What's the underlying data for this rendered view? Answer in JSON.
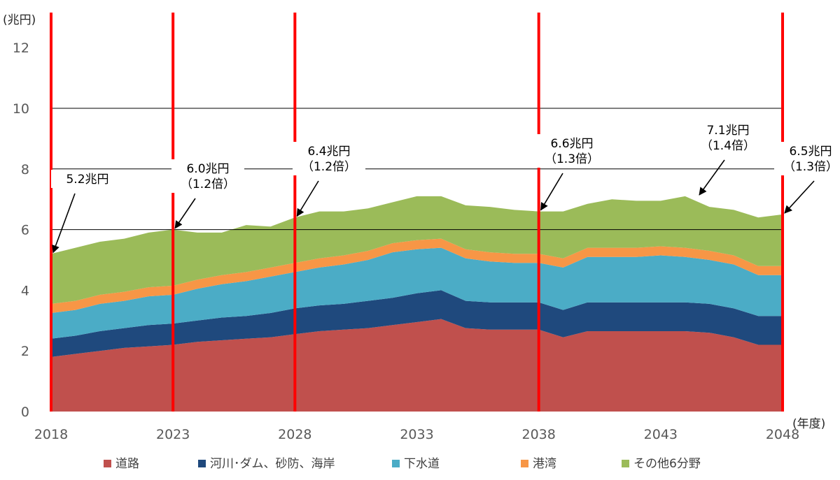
{
  "chart_data": {
    "type": "area",
    "stacked": true,
    "y_unit_label": "(兆円)",
    "x_unit_label": "(年度)",
    "ylim": [
      0,
      13
    ],
    "yticks": [
      0,
      2,
      4,
      6,
      8,
      10,
      12
    ],
    "xlim": [
      2018,
      2048
    ],
    "xticks": [
      2018,
      2023,
      2028,
      2033,
      2038,
      2043,
      2048
    ],
    "gridlines": [
      6,
      8,
      10
    ],
    "x": [
      2018,
      2019,
      2020,
      2021,
      2022,
      2023,
      2024,
      2025,
      2026,
      2027,
      2028,
      2029,
      2030,
      2031,
      2032,
      2033,
      2034,
      2035,
      2036,
      2037,
      2038,
      2039,
      2040,
      2041,
      2042,
      2043,
      2044,
      2045,
      2046,
      2047,
      2048
    ],
    "series": [
      {
        "name": "道路",
        "color": "#c0504d",
        "values": [
          1.8,
          1.9,
          2.0,
          2.1,
          2.15,
          2.2,
          2.3,
          2.35,
          2.4,
          2.45,
          2.55,
          2.65,
          2.7,
          2.75,
          2.85,
          2.95,
          3.05,
          2.75,
          2.7,
          2.7,
          2.7,
          2.45,
          2.65,
          2.65,
          2.65,
          2.65,
          2.65,
          2.6,
          2.45,
          2.2,
          2.2
        ]
      },
      {
        "name": "河川･ダム、砂防、海岸",
        "color": "#1f497d",
        "values": [
          0.6,
          0.6,
          0.65,
          0.65,
          0.7,
          0.7,
          0.7,
          0.75,
          0.75,
          0.8,
          0.85,
          0.85,
          0.85,
          0.9,
          0.9,
          0.95,
          0.95,
          0.9,
          0.9,
          0.9,
          0.9,
          0.9,
          0.95,
          0.95,
          0.95,
          0.95,
          0.95,
          0.95,
          0.95,
          0.95,
          0.95
        ]
      },
      {
        "name": "下水道",
        "color": "#4bacc6",
        "values": [
          0.85,
          0.85,
          0.9,
          0.9,
          0.95,
          0.95,
          1.05,
          1.1,
          1.15,
          1.2,
          1.2,
          1.25,
          1.3,
          1.35,
          1.5,
          1.45,
          1.4,
          1.4,
          1.35,
          1.3,
          1.3,
          1.4,
          1.5,
          1.5,
          1.5,
          1.55,
          1.5,
          1.45,
          1.45,
          1.35,
          1.35
        ]
      },
      {
        "name": "港湾",
        "color": "#f79646",
        "values": [
          0.3,
          0.3,
          0.3,
          0.3,
          0.3,
          0.3,
          0.3,
          0.3,
          0.3,
          0.3,
          0.3,
          0.3,
          0.3,
          0.3,
          0.3,
          0.3,
          0.3,
          0.3,
          0.3,
          0.3,
          0.3,
          0.3,
          0.3,
          0.3,
          0.3,
          0.3,
          0.3,
          0.3,
          0.3,
          0.3,
          0.3
        ]
      },
      {
        "name": "その他6分野",
        "color": "#9bbb59",
        "values": [
          1.65,
          1.75,
          1.75,
          1.75,
          1.8,
          1.85,
          1.55,
          1.4,
          1.55,
          1.35,
          1.5,
          1.55,
          1.45,
          1.4,
          1.35,
          1.45,
          1.4,
          1.45,
          1.5,
          1.45,
          1.4,
          1.55,
          1.45,
          1.6,
          1.55,
          1.5,
          1.7,
          1.45,
          1.5,
          1.6,
          1.7
        ]
      }
    ],
    "markers": [
      {
        "year": 2018,
        "value": 5.2,
        "label_lines": [
          "5.2兆円"
        ]
      },
      {
        "year": 2023,
        "value": 6.0,
        "label_lines": [
          "6.0兆円",
          "（1.2倍）"
        ]
      },
      {
        "year": 2028,
        "value": 6.4,
        "label_lines": [
          "6.4兆円",
          "（1.2倍）"
        ]
      },
      {
        "year": 2038,
        "value": 6.6,
        "label_lines": [
          "6.6兆円",
          "（1.3倍）"
        ]
      },
      {
        "year": 2044.5,
        "value": 7.1,
        "label_lines": [
          "7.1兆円",
          "（1.4倍）"
        ]
      },
      {
        "year": 2048,
        "value": 6.5,
        "label_lines": [
          "6.5兆円",
          "（1.3倍）"
        ]
      }
    ],
    "red_lines_at": [
      2018,
      2023,
      2028,
      2038,
      2048
    ],
    "legend_position": "bottom"
  }
}
